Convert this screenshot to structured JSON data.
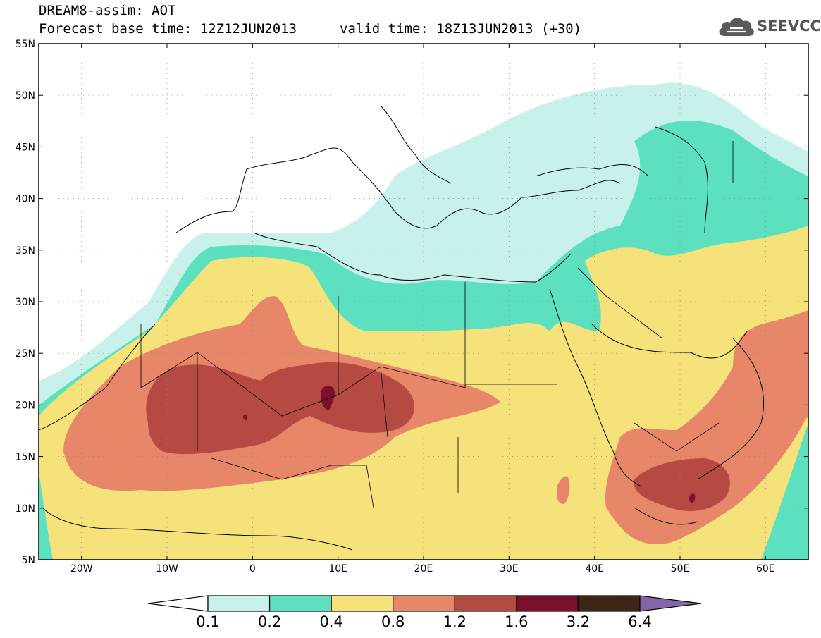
{
  "header": {
    "title_line1": "DREAM8-assim: AOT",
    "title_line2": "Forecast base time: 12Z12JUN2013",
    "valid_time": "valid time: 18Z13JUN2013 (+30)",
    "logo_text": "SEEVCCC",
    "logo_icon": "cloud-icon"
  },
  "map": {
    "lat_labels": [
      "55N",
      "50N",
      "45N",
      "40N",
      "35N",
      "30N",
      "25N",
      "20N",
      "15N",
      "10N",
      "5N"
    ],
    "lat_values": [
      55,
      50,
      45,
      40,
      35,
      30,
      25,
      20,
      15,
      10,
      5
    ],
    "lon_labels": [
      "20W",
      "10W",
      "0",
      "10E",
      "20E",
      "30E",
      "40E",
      "50E",
      "60E"
    ],
    "lon_values": [
      -20,
      -10,
      0,
      10,
      20,
      30,
      40,
      50,
      60
    ],
    "extent": {
      "lon_min": -25,
      "lon_max": 65,
      "lat_min": 5,
      "lat_max": 55
    },
    "grid": true
  },
  "colorbar": {
    "labels": [
      "0.1",
      "0.2",
      "0.4",
      "0.8",
      "1.2",
      "1.6",
      "3.2",
      "6.4"
    ],
    "colors": [
      "#ffffff",
      "#c8f1ec",
      "#5ce0bf",
      "#f5e27a",
      "#e8866a",
      "#b44a42",
      "#7c0f2c",
      "#3e2616",
      "#8466a8"
    ]
  },
  "colors": {
    "lvl1": "#c8f1ec",
    "lvl2": "#5ce0bf",
    "lvl3": "#f5e27a",
    "lvl4": "#e8866a",
    "lvl5": "#b44a42",
    "lvl6": "#7c0f2c"
  }
}
